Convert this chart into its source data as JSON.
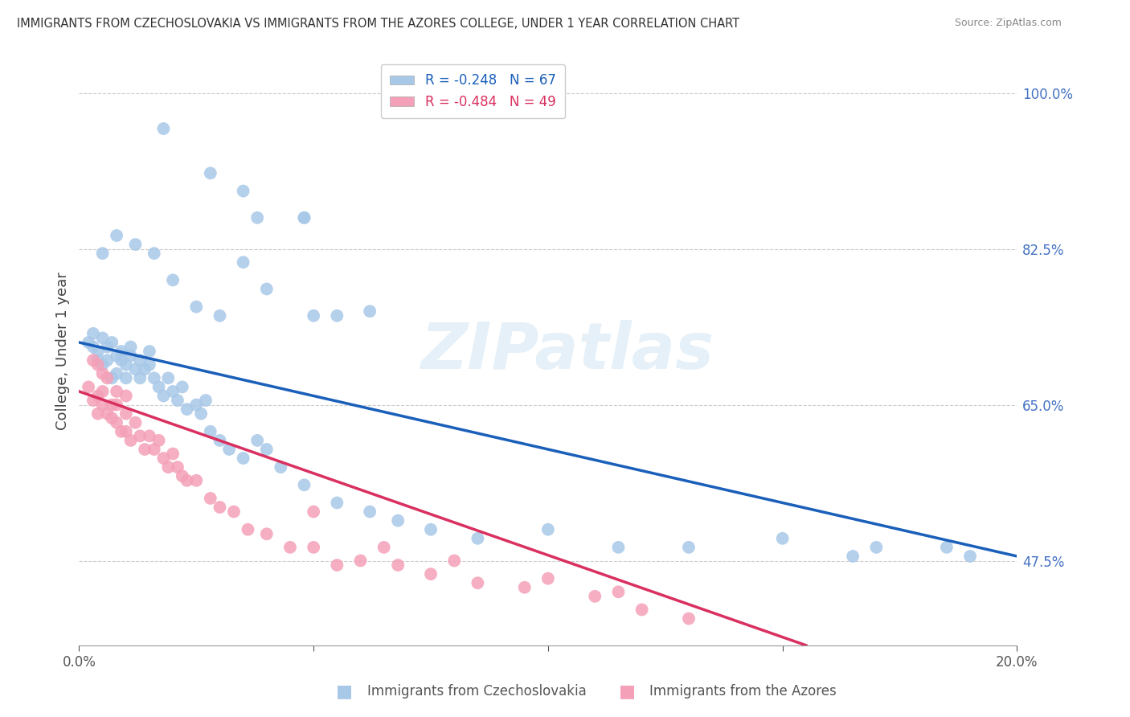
{
  "title": "IMMIGRANTS FROM CZECHOSLOVAKIA VS IMMIGRANTS FROM THE AZORES COLLEGE, UNDER 1 YEAR CORRELATION CHART",
  "source": "Source: ZipAtlas.com",
  "ylabel": "College, Under 1 year",
  "legend_blue_label": "Immigrants from Czechoslovakia",
  "legend_pink_label": "Immigrants from the Azores",
  "blue_R": -0.248,
  "blue_N": 67,
  "pink_R": -0.484,
  "pink_N": 49,
  "blue_color": "#a8c8e8",
  "pink_color": "#f4a0b8",
  "blue_line_color": "#1a5fba",
  "pink_line_color": "#d93060",
  "watermark_text": "ZIPatlas",
  "xlim": [
    0.0,
    0.2
  ],
  "ylim": [
    0.38,
    1.04
  ],
  "right_yticks": [
    1.0,
    0.825,
    0.65,
    0.475
  ],
  "right_yticklabels": [
    "100.0%",
    "82.5%",
    "65.0%",
    "47.5%"
  ],
  "xtick_positions": [
    0.0,
    0.05,
    0.1,
    0.15,
    0.2
  ],
  "xticklabels": [
    "0.0%",
    "",
    "",
    "",
    "20.0%"
  ],
  "blue_line_x0": 0.0,
  "blue_line_y0": 0.72,
  "blue_line_x1": 0.2,
  "blue_line_y1": 0.48,
  "pink_line_x0": 0.0,
  "pink_line_y0": 0.665,
  "pink_line_x1": 0.155,
  "pink_line_y1": 0.38,
  "blue_scatter_x": [
    0.002,
    0.003,
    0.003,
    0.004,
    0.004,
    0.005,
    0.005,
    0.006,
    0.006,
    0.007,
    0.007,
    0.008,
    0.008,
    0.009,
    0.009,
    0.01,
    0.01,
    0.011,
    0.011,
    0.012,
    0.013,
    0.013,
    0.014,
    0.015,
    0.015,
    0.016,
    0.017,
    0.018,
    0.019,
    0.02,
    0.021,
    0.022,
    0.023,
    0.025,
    0.026,
    0.027,
    0.028,
    0.03,
    0.032,
    0.035,
    0.038,
    0.04,
    0.043,
    0.048,
    0.055,
    0.062,
    0.068,
    0.075,
    0.085,
    0.1,
    0.115,
    0.13,
    0.15,
    0.165,
    0.185,
    0.19,
    0.17,
    0.005,
    0.008,
    0.012,
    0.016,
    0.02,
    0.025,
    0.03,
    0.035,
    0.04,
    0.05
  ],
  "blue_scatter_y": [
    0.72,
    0.715,
    0.73,
    0.71,
    0.7,
    0.725,
    0.695,
    0.715,
    0.7,
    0.72,
    0.68,
    0.705,
    0.685,
    0.7,
    0.71,
    0.695,
    0.68,
    0.705,
    0.715,
    0.69,
    0.68,
    0.7,
    0.69,
    0.71,
    0.695,
    0.68,
    0.67,
    0.66,
    0.68,
    0.665,
    0.655,
    0.67,
    0.645,
    0.65,
    0.64,
    0.655,
    0.62,
    0.61,
    0.6,
    0.59,
    0.61,
    0.6,
    0.58,
    0.56,
    0.54,
    0.53,
    0.52,
    0.51,
    0.5,
    0.51,
    0.49,
    0.49,
    0.5,
    0.48,
    0.49,
    0.48,
    0.49,
    0.82,
    0.84,
    0.83,
    0.82,
    0.79,
    0.76,
    0.75,
    0.81,
    0.78,
    0.75
  ],
  "blue_outliers_x": [
    0.018,
    0.028,
    0.035,
    0.038,
    0.048,
    0.048,
    0.055,
    0.062
  ],
  "blue_outliers_y": [
    0.96,
    0.91,
    0.89,
    0.86,
    0.86,
    0.86,
    0.75,
    0.755
  ],
  "pink_scatter_x": [
    0.002,
    0.003,
    0.004,
    0.004,
    0.005,
    0.005,
    0.006,
    0.007,
    0.007,
    0.008,
    0.008,
    0.009,
    0.01,
    0.01,
    0.011,
    0.012,
    0.013,
    0.014,
    0.015,
    0.016,
    0.017,
    0.018,
    0.019,
    0.02,
    0.021,
    0.022,
    0.023,
    0.025,
    0.028,
    0.03,
    0.033,
    0.036,
    0.04,
    0.045,
    0.05,
    0.055,
    0.06,
    0.068,
    0.075,
    0.085,
    0.05,
    0.065,
    0.08,
    0.095,
    0.11,
    0.1,
    0.12,
    0.13,
    0.115
  ],
  "pink_scatter_y": [
    0.67,
    0.655,
    0.66,
    0.64,
    0.665,
    0.65,
    0.64,
    0.65,
    0.635,
    0.65,
    0.63,
    0.62,
    0.64,
    0.62,
    0.61,
    0.63,
    0.615,
    0.6,
    0.615,
    0.6,
    0.61,
    0.59,
    0.58,
    0.595,
    0.58,
    0.57,
    0.565,
    0.565,
    0.545,
    0.535,
    0.53,
    0.51,
    0.505,
    0.49,
    0.49,
    0.47,
    0.475,
    0.47,
    0.46,
    0.45,
    0.53,
    0.49,
    0.475,
    0.445,
    0.435,
    0.455,
    0.42,
    0.41,
    0.44
  ],
  "pink_outliers_x": [
    0.003,
    0.004,
    0.005,
    0.006,
    0.008,
    0.01
  ],
  "pink_outliers_y": [
    0.7,
    0.695,
    0.685,
    0.68,
    0.665,
    0.66
  ]
}
